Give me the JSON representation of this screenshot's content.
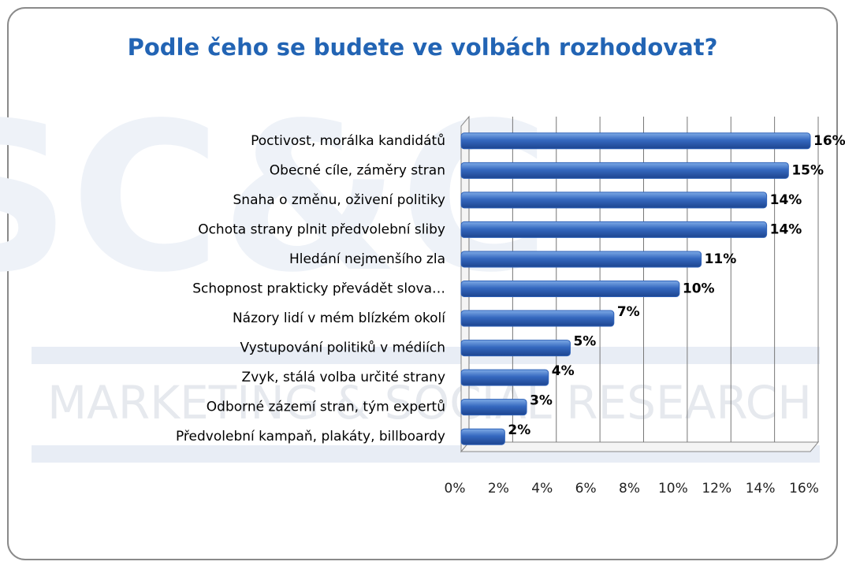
{
  "chart_data": {
    "type": "bar",
    "orientation": "horizontal",
    "title": "Podle čeho se budete ve volbách rozhodovat?",
    "watermark": {
      "logo": "SC&C",
      "tagline": "MARKETING & SOCIAL RESEARCH"
    },
    "categories": [
      "Poctivost, morálka kandidátů",
      "Obecné cíle, záměry stran",
      "Snaha o změnu, oživení politiky",
      "Ochota strany plnit předvolební sliby",
      "Hledání nejmenšího zla",
      "Schopnost prakticky převádět slova…",
      "Názory lidí v mém blízkém okolí",
      "Vystupování politiků v médiích",
      "Zvyk, stálá volba určité strany",
      "Odborné zázemí stran, tým expertů",
      "Předvolební kampaň, plakáty, billboardy"
    ],
    "values": [
      16,
      15,
      14,
      14,
      11,
      10,
      7,
      5,
      4,
      3,
      2
    ],
    "value_labels": [
      "16%",
      "15%",
      "14%",
      "14%",
      "11%",
      "10%",
      "7%",
      "5%",
      "4%",
      "3%",
      "2%"
    ],
    "color": "#2f62b8",
    "xlim": [
      0,
      16
    ],
    "xticks": [
      {
        "value": 0,
        "label": "0%"
      },
      {
        "value": 2,
        "label": "2%"
      },
      {
        "value": 4,
        "label": "4%"
      },
      {
        "value": 6,
        "label": "6%"
      },
      {
        "value": 8,
        "label": "8%"
      },
      {
        "value": 10,
        "label": "10%"
      },
      {
        "value": 12,
        "label": "12%"
      },
      {
        "value": 14,
        "label": "14%"
      },
      {
        "value": 16,
        "label": "16%"
      }
    ],
    "grid": true
  }
}
